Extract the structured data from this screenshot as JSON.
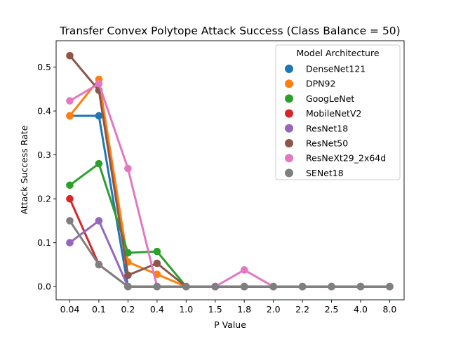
{
  "chart_data": {
    "type": "line",
    "title": "Transfer Convex Polytope Attack Success (Class Balance = 50)",
    "xlabel": "P Value",
    "ylabel": "Attack Success Rate",
    "categories": [
      "0.04",
      "0.1",
      "0.2",
      "0.4",
      "1.0",
      "1.5",
      "1.8",
      "2.0",
      "2.2",
      "2.5",
      "4.0",
      "8.0"
    ],
    "ylim": [
      -0.03,
      0.56
    ],
    "yticks": [
      0.0,
      0.1,
      0.2,
      0.3,
      0.4,
      0.5
    ],
    "ytick_labels": [
      "0.0",
      "0.1",
      "0.2",
      "0.3",
      "0.4",
      "0.5"
    ],
    "grid": false,
    "legend": {
      "title": "Model Architecture",
      "position": "top-right"
    },
    "series": [
      {
        "name": "DenseNet121",
        "color": "#1f77b4",
        "values": [
          0.389,
          0.389,
          0.0,
          0.0,
          0.0,
          0.0,
          0.0,
          0.0,
          0.0,
          0.0,
          0.0,
          0.0
        ]
      },
      {
        "name": "DPN92",
        "color": "#ff7f0e",
        "values": [
          0.389,
          0.472,
          0.056,
          0.028,
          0.0,
          0.0,
          0.0,
          0.0,
          0.0,
          0.0,
          0.0,
          0.0
        ]
      },
      {
        "name": "GoogLeNet",
        "color": "#2ca02c",
        "values": [
          0.231,
          0.28,
          0.077,
          0.08,
          0.0,
          0.0,
          0.0,
          0.0,
          0.0,
          0.0,
          0.0,
          0.0
        ]
      },
      {
        "name": "MobileNetV2",
        "color": "#d62728",
        "values": [
          0.2,
          0.05,
          0.0,
          0.0,
          0.0,
          0.0,
          0.0,
          0.0,
          0.0,
          0.0,
          0.0,
          0.0
        ]
      },
      {
        "name": "ResNet18",
        "color": "#9467bd",
        "values": [
          0.1,
          0.15,
          0.0,
          0.0,
          0.0,
          0.0,
          0.0,
          0.0,
          0.0,
          0.0,
          0.0,
          0.0
        ]
      },
      {
        "name": "ResNet50",
        "color": "#8c564b",
        "values": [
          0.526,
          0.447,
          0.026,
          0.053,
          0.0,
          0.0,
          0.0,
          0.0,
          0.0,
          0.0,
          0.0,
          0.0
        ]
      },
      {
        "name": "ResNeXt29_2x64d",
        "color": "#e377c2",
        "values": [
          0.423,
          0.462,
          0.269,
          0.0,
          0.0,
          0.0,
          0.038,
          0.0,
          0.0,
          0.0,
          0.0,
          0.0
        ]
      },
      {
        "name": "SENet18",
        "color": "#7f7f7f",
        "values": [
          0.15,
          0.05,
          0.0,
          0.0,
          0.0,
          0.0,
          0.0,
          0.0,
          0.0,
          0.0,
          0.0,
          0.0
        ]
      }
    ]
  }
}
